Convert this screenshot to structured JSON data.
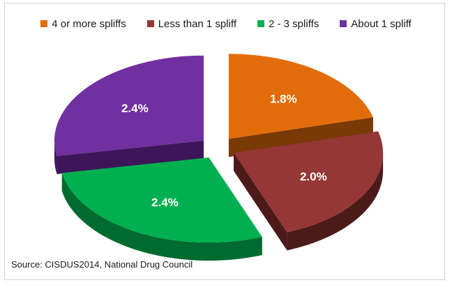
{
  "chart_data": {
    "type": "pie",
    "categories": [
      "4 or more spliffs",
      "Less than 1 spliff",
      "2 - 3 spliffs",
      "About 1 spliff"
    ],
    "values": [
      1.8,
      2.0,
      2.4,
      2.4
    ],
    "value_labels": [
      "1.8%",
      "2.0%",
      "2.4%",
      "2.4%"
    ],
    "colors": [
      "#e36c0a",
      "#953735",
      "#00b050",
      "#7030a0"
    ],
    "side_colors": [
      "#7a3a06",
      "#4d1a1a",
      "#006b30",
      "#3c1658"
    ],
    "style": "3d-exploded",
    "legend_position": "top"
  },
  "source": "Source: CISDUS2014,  National Drug Council"
}
